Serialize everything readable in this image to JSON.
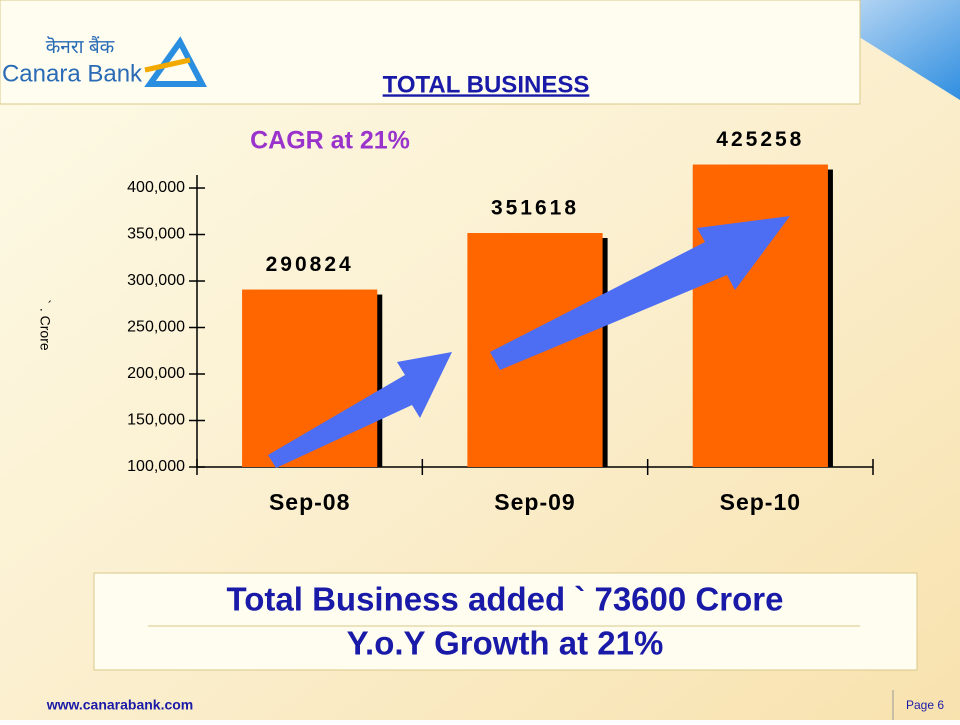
{
  "header": {
    "logo_hindi": "कॆनरा बैंक",
    "logo_english": "Canara Bank"
  },
  "chart_data": {
    "type": "bar",
    "title": "TOTAL BUSINESS",
    "annotation": "CAGR at 21%",
    "y_label": "` . Crore",
    "categories": [
      "Sep-08",
      "Sep-09",
      "Sep-10"
    ],
    "values": [
      290824,
      351618,
      425258
    ],
    "color": "#ff6600",
    "ylim": [
      100000,
      414000
    ],
    "yticks": [
      {
        "value": 100000,
        "label": "100,000"
      },
      {
        "value": 150000,
        "label": "150,000"
      },
      {
        "value": 200000,
        "label": "200,000"
      },
      {
        "value": 250000,
        "label": "250,000"
      },
      {
        "value": 300000,
        "label": "300,000"
      },
      {
        "value": 350000,
        "label": "350,000"
      },
      {
        "value": 400000,
        "label": "400,000"
      }
    ],
    "grid": false
  },
  "summary": {
    "line1": "Total Business added ` 73600 Crore",
    "line2": "Y.o.Y Growth at 21%"
  },
  "footer": {
    "website": "www.canarabank.com",
    "page": "Page 6"
  }
}
